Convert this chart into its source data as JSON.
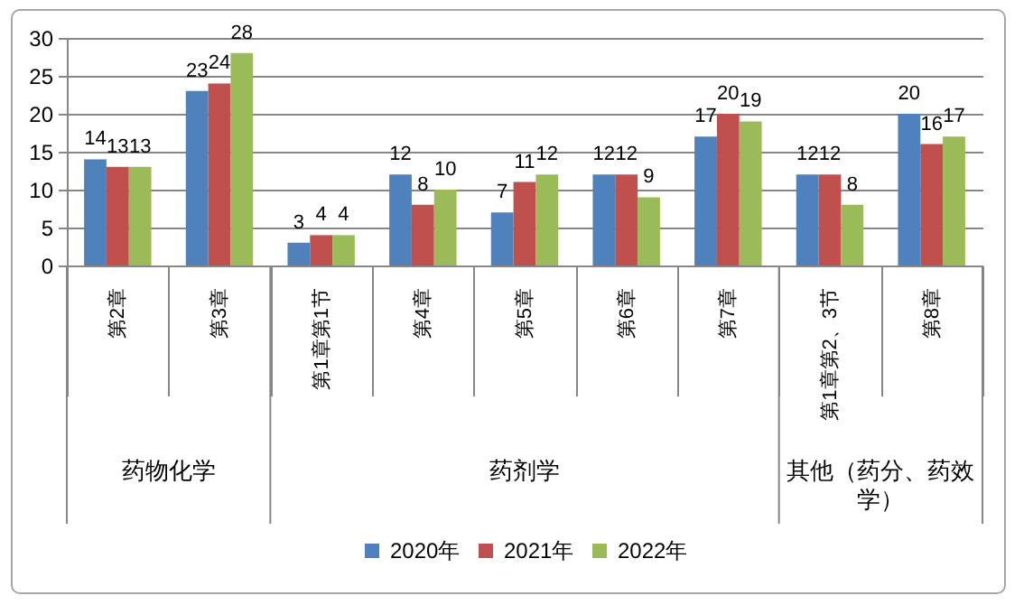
{
  "chart_data": {
    "type": "bar",
    "categories": [
      "第2章",
      "第3章",
      "第1章第1节",
      "第4章",
      "第5章",
      "第6章",
      "第7章",
      "第1章第2、3节",
      "第8章"
    ],
    "series": [
      {
        "name": "2020年",
        "color": "#4f81bd",
        "values": [
          14,
          23,
          3,
          12,
          7,
          12,
          17,
          12,
          20
        ]
      },
      {
        "name": "2021年",
        "color": "#c0504d",
        "values": [
          13,
          24,
          4,
          8,
          11,
          12,
          20,
          12,
          16
        ]
      },
      {
        "name": "2022年",
        "color": "#9bbb59",
        "values": [
          13,
          28,
          4,
          10,
          12,
          9,
          19,
          8,
          17
        ]
      }
    ],
    "ylim": [
      0,
      30
    ],
    "yticks": [
      0,
      5,
      10,
      15,
      20,
      25,
      30
    ],
    "grid": "y",
    "legend": "bottom",
    "data_labels": true,
    "annotations": [
      "药物化学",
      "药剂学",
      "其他（药分、药效学）"
    ]
  }
}
